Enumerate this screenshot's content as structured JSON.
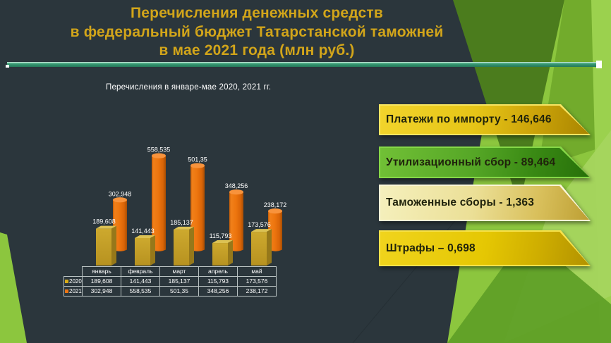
{
  "slide": {
    "title_lines": [
      "Перечисления денежных средств",
      "в федеральный бюджет Татарстанской таможней",
      "в мае 2021 года (млн руб.)"
    ]
  },
  "chart_data": {
    "type": "bar",
    "title": "Перечисления в январе-мае 2020, 2021 гг.",
    "categories": [
      "январь",
      "февраль",
      "март",
      "апрель",
      "май"
    ],
    "series": [
      {
        "name": "2020",
        "color": "#d9ab16",
        "values": [
          189.608,
          141.443,
          185.137,
          115.793,
          173.576
        ],
        "labels": [
          "189,608",
          "141,443",
          "185,137",
          "115,793",
          "173,576"
        ]
      },
      {
        "name": "2021",
        "color": "#ed7513",
        "values": [
          302.948,
          558.535,
          501.35,
          348.256,
          238.172
        ],
        "labels": [
          "302,948",
          "558,535",
          "501,35",
          "348,256",
          "238,172"
        ]
      }
    ],
    "ylim": [
      0,
      600
    ],
    "grid": false,
    "legend_position": "table-left",
    "unit": "млн руб."
  },
  "banners": [
    {
      "label": "Платежи по импорту - 146,646",
      "style": "gold"
    },
    {
      "label": "Утилизационный сбор - 89,464",
      "style": "green"
    },
    {
      "label": "Таможенные сборы  - 1,363",
      "style": "pale-gold"
    },
    {
      "label": "Штрафы – 0,698",
      "style": "bright-gold"
    }
  ],
  "colors": {
    "background_dark": "#2b363c",
    "title_gold": "#d2a51a",
    "divider_teal": "#3a9a77",
    "green_light": "#8cc63e",
    "green_medium": "#72ab2c",
    "green_dark": "#4b7c1d",
    "bar_2020": "#c7a127",
    "bar_2021": "#ed7513"
  }
}
